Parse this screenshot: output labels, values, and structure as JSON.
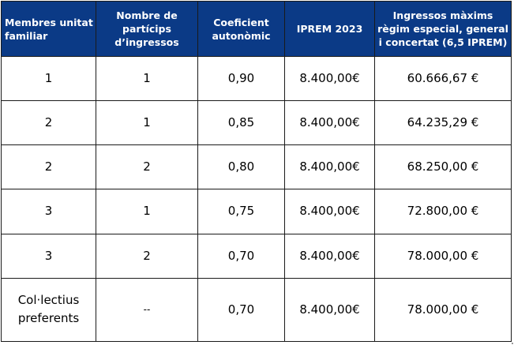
{
  "table": {
    "headers": [
      "Membres unitat familiar",
      "Nombre de partícips d’ingressos",
      "Coeficient autonòmic",
      "IPREM 2023",
      "Ingressos màxims règim especial, general i concertat (6,5 IPREM)"
    ],
    "rows": [
      [
        "1",
        "1",
        "0,90",
        "8.400,00€",
        "60.666,67 €"
      ],
      [
        "2",
        "1",
        "0,85",
        "8.400,00€",
        "64.235,29 €"
      ],
      [
        "2",
        "2",
        "0,80",
        "8.400,00€",
        "68.250,00 €"
      ],
      [
        "3",
        "1",
        "0,75",
        "8.400,00€",
        "72.800,00 €"
      ],
      [
        "3",
        "2",
        "0,70",
        "8.400,00€",
        "78.000,00 €"
      ],
      [
        "Col·lectius preferents",
        "--",
        "0,70",
        "8.400,00€",
        "78.000,00 €"
      ]
    ]
  },
  "colors": {
    "header_background": "#0b3a86",
    "header_text": "#ffffff",
    "border": "#1a1a1a",
    "body_text": "#000000"
  }
}
